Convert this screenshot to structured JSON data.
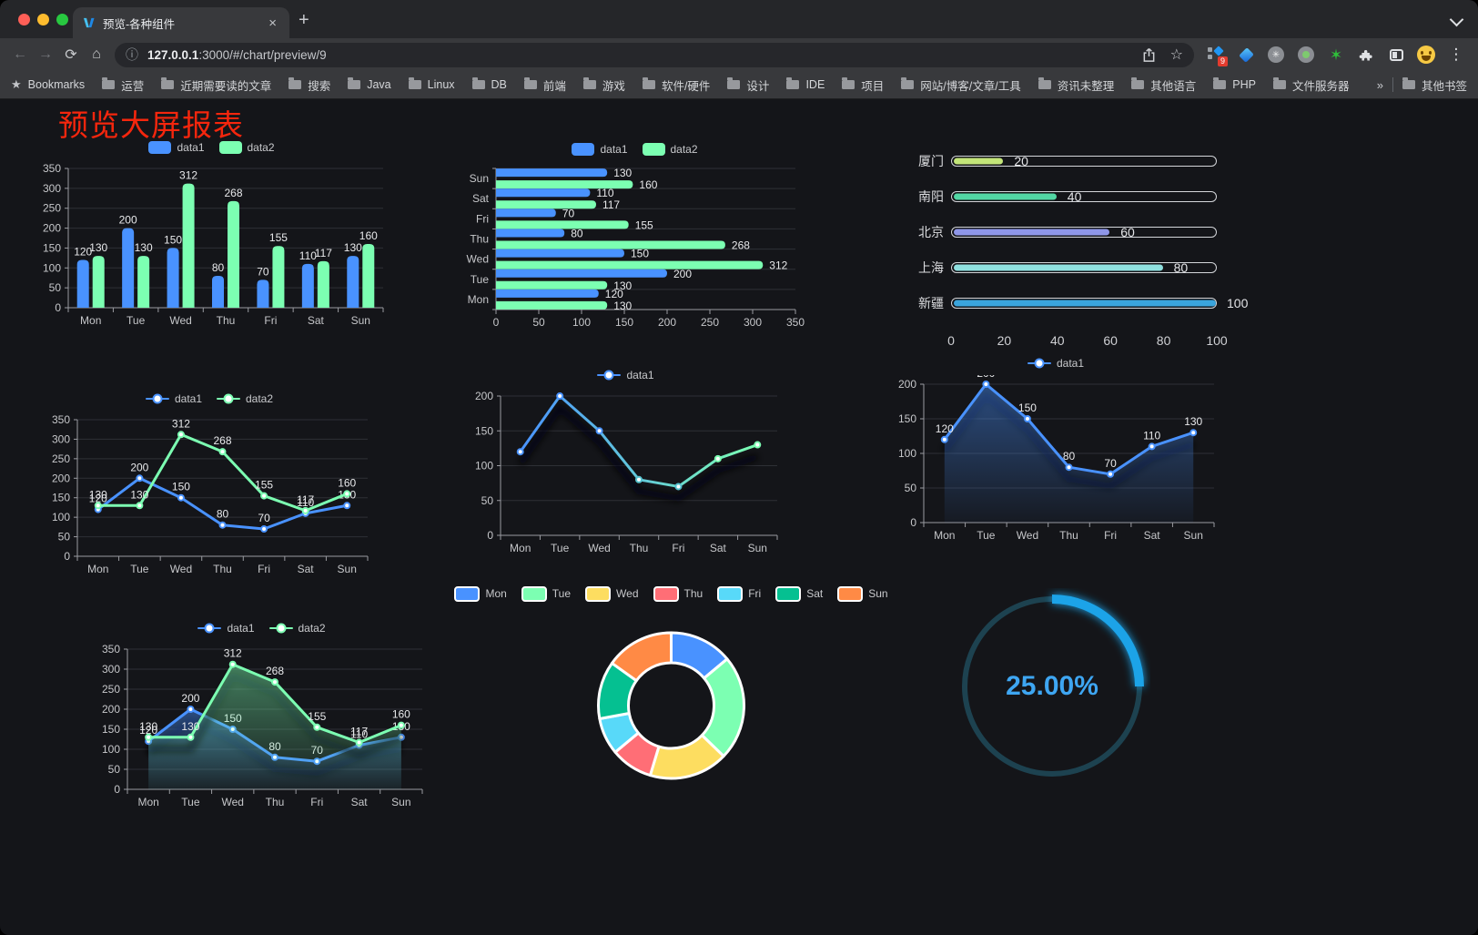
{
  "browser": {
    "tab": {
      "title": "预览-各种组件"
    },
    "url": {
      "host": "127.0.0.1",
      "path": ":3000/#/chart/preview/9"
    },
    "bookmarks_label": "Bookmarks",
    "bookmarks": [
      "运营",
      "近期需要读的文章",
      "搜索",
      "Java",
      "Linux",
      "DB",
      "前端",
      "游戏",
      "软件/硬件",
      "设计",
      "IDE",
      "项目",
      "网站/博客/文章/工具",
      "资讯未整理",
      "其他语言",
      "PHP",
      "文件服务器"
    ],
    "other_bookmarks": "其他书签",
    "extension_badge": "9",
    "icons": {
      "back": "←",
      "forward": "→",
      "reload": "⟳",
      "home": "⌂",
      "info": "ⓘ",
      "star": "☆",
      "bookmarks_star": "★",
      "menu": "⋮",
      "close_tab": "×",
      "new_tab": "+",
      "overflow": "»",
      "proxy_glyph": "✳"
    }
  },
  "page": {
    "title": "预览大屏报表",
    "title_color": "#f5260d"
  },
  "chart_data": [
    {
      "id": "bar-grouped",
      "type": "bar",
      "legend_kind": "bar",
      "categories": [
        "Mon",
        "Tue",
        "Wed",
        "Thu",
        "Fri",
        "Sat",
        "Sun"
      ],
      "series": [
        {
          "name": "data1",
          "color": "#4992ff",
          "values": [
            120,
            200,
            150,
            80,
            70,
            110,
            130
          ]
        },
        {
          "name": "data2",
          "color": "#7cffb2",
          "values": [
            130,
            130,
            312,
            268,
            155,
            117,
            160
          ]
        }
      ],
      "ylim": [
        0,
        350
      ],
      "ytick": 50,
      "grid": true,
      "legend_position": "top"
    },
    {
      "id": "hbar-grouped",
      "type": "hbar",
      "legend_kind": "bar",
      "categories": [
        "Mon",
        "Tue",
        "Wed",
        "Thu",
        "Fri",
        "Sat",
        "Sun"
      ],
      "series": [
        {
          "name": "data1",
          "color": "#4992ff",
          "values": [
            120,
            200,
            150,
            80,
            70,
            110,
            130
          ]
        },
        {
          "name": "data2",
          "color": "#7cffb2",
          "values": [
            130,
            130,
            312,
            268,
            155,
            117,
            160
          ]
        }
      ],
      "xlim": [
        0,
        350
      ],
      "xtick": 50,
      "grid": true,
      "legend_position": "top"
    },
    {
      "id": "progress-bars",
      "type": "progress",
      "max": 100,
      "axis": [
        0,
        20,
        40,
        60,
        80,
        100
      ],
      "rows": [
        {
          "label": "厦门",
          "value": 20,
          "color": "#c3e579"
        },
        {
          "label": "南阳",
          "value": 40,
          "color": "#52d6a4"
        },
        {
          "label": "北京",
          "value": 60,
          "color": "#8e96e8"
        },
        {
          "label": "上海",
          "value": 80,
          "color": "#8fe0df"
        },
        {
          "label": "新疆",
          "value": 100,
          "color": "#3aa4dc"
        }
      ]
    },
    {
      "id": "line-two-series",
      "type": "line",
      "legend_kind": "line",
      "categories": [
        "Mon",
        "Tue",
        "Wed",
        "Thu",
        "Fri",
        "Sat",
        "Sun"
      ],
      "series": [
        {
          "name": "data1",
          "color": "#4992ff",
          "values": [
            120,
            200,
            150,
            80,
            70,
            110,
            130
          ]
        },
        {
          "name": "data2",
          "color": "#7cffb2",
          "values": [
            130,
            130,
            312,
            268,
            155,
            117,
            160
          ]
        }
      ],
      "ylim": [
        0,
        350
      ],
      "ytick": 50,
      "labels": true,
      "shadow": false,
      "grid": true,
      "legend_position": "top"
    },
    {
      "id": "line-gradient",
      "type": "line",
      "legend_kind": "line",
      "categories": [
        "Mon",
        "Tue",
        "Wed",
        "Thu",
        "Fri",
        "Sat",
        "Sun"
      ],
      "series": [
        {
          "name": "data1",
          "gradient": [
            "#4992ff",
            "#7cffb2"
          ],
          "values": [
            120,
            200,
            150,
            80,
            70,
            110,
            130
          ]
        }
      ],
      "ylim": [
        0,
        200
      ],
      "ytick": 50,
      "labels": false,
      "shadow": true,
      "grid": true,
      "legend_position": "top"
    },
    {
      "id": "area-single",
      "type": "line",
      "legend_kind": "line",
      "categories": [
        "Mon",
        "Tue",
        "Wed",
        "Thu",
        "Fri",
        "Sat",
        "Sun"
      ],
      "series": [
        {
          "name": "data1",
          "color": "#4992ff",
          "area": true,
          "values": [
            120,
            200,
            150,
            80,
            70,
            110,
            130
          ]
        }
      ],
      "ylim": [
        0,
        200
      ],
      "ytick": 50,
      "labels": true,
      "shadow": true,
      "grid": true,
      "legend_position": "top"
    },
    {
      "id": "area-two-series",
      "type": "line",
      "legend_kind": "line",
      "categories": [
        "Mon",
        "Tue",
        "Wed",
        "Thu",
        "Fri",
        "Sat",
        "Sun"
      ],
      "series": [
        {
          "name": "data1",
          "color": "#4992ff",
          "area": true,
          "values": [
            120,
            200,
            150,
            80,
            70,
            110,
            130
          ]
        },
        {
          "name": "data2",
          "color": "#7cffb2",
          "area": true,
          "values": [
            130,
            130,
            312,
            268,
            155,
            117,
            160
          ]
        }
      ],
      "ylim": [
        0,
        350
      ],
      "ytick": 50,
      "labels": true,
      "shadow": true,
      "grid": true,
      "legend_position": "top"
    },
    {
      "id": "donut",
      "type": "donut",
      "legend_kind": "pie",
      "legend_position": "top",
      "categories": [
        "Mon",
        "Tue",
        "Wed",
        "Thu",
        "Fri",
        "Sat",
        "Sun"
      ],
      "values": [
        120,
        200,
        150,
        80,
        70,
        110,
        130
      ],
      "colors": [
        "#4992ff",
        "#7cffb2",
        "#fddd60",
        "#ff6e76",
        "#58d9f9",
        "#05c091",
        "#ff8a45"
      ],
      "radius": [
        47,
        80
      ],
      "border_color": "#ffffff"
    },
    {
      "id": "gauge",
      "type": "gauge",
      "value": "25.00%",
      "percent": 25,
      "color": "#1aa3e8",
      "track_color": "#1d4250",
      "text_color": "#3ea6f2"
    }
  ]
}
